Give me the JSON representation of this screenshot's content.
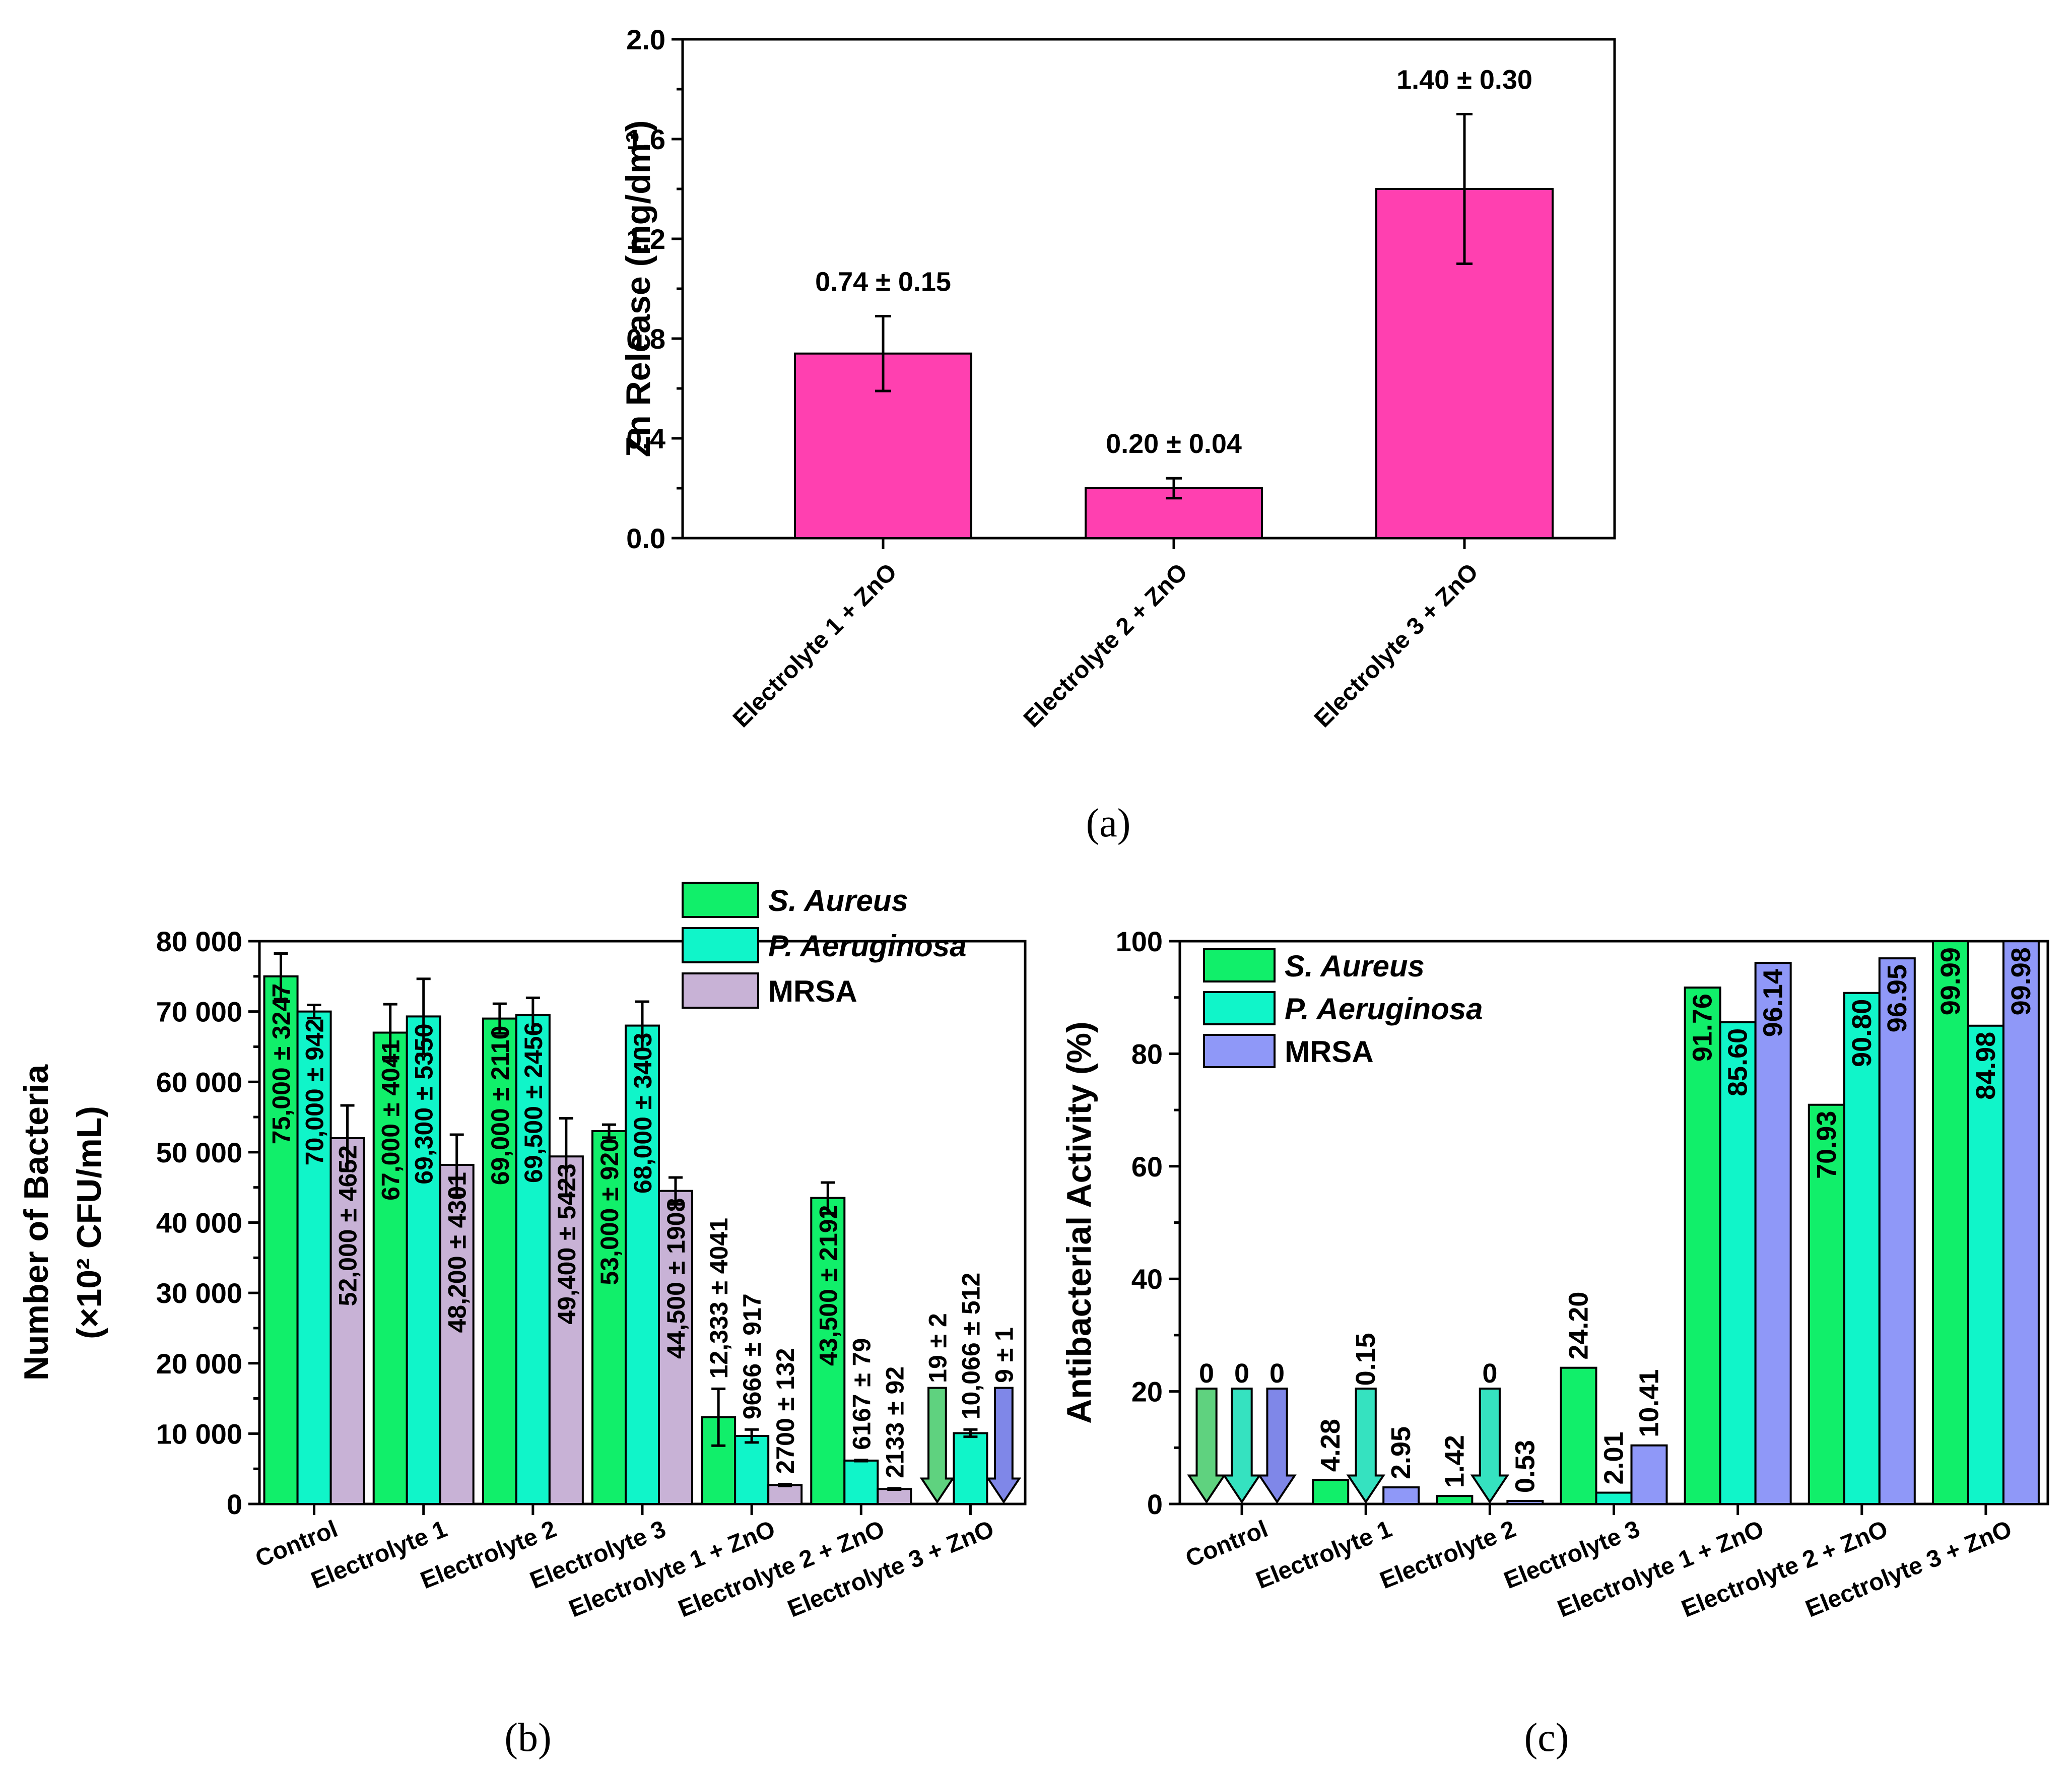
{
  "colors": {
    "pink": "#ff40b0",
    "green": "#11ef6a",
    "cyan": "#10f5c9",
    "lavender": "#c8b2d6",
    "blue": "#8f98f8",
    "arrow_green": "#5fd27f",
    "arrow_cyan": "#35e2c0",
    "arrow_blue": "#7f87e8"
  },
  "chart_data": [
    {
      "id": "a",
      "type": "bar",
      "panel_label": "(a)",
      "ylabel": "Zn Release (mg/dm³)",
      "ylim": [
        0,
        2.0
      ],
      "yticks": [
        "0.0",
        "0.4",
        "0.8",
        "1.2",
        "1.6",
        "2.0"
      ],
      "categories": [
        "Electrolyte 1 + ZnO",
        "Electrolyte 2 + ZnO",
        "Electrolyte 3 + ZnO"
      ],
      "values": [
        0.74,
        0.2,
        1.4
      ],
      "errors": [
        0.15,
        0.04,
        0.3
      ],
      "labels": [
        "0.74 ± 0.15",
        "0.20 ± 0.04",
        "1.40 ± 0.30"
      ]
    },
    {
      "id": "b",
      "type": "bar",
      "panel_label": "(b)",
      "ylabel_line1": "Number of Bacteria",
      "ylabel_line2": "(×10² CFU/mL)",
      "ylim": [
        0,
        80000
      ],
      "yticks": [
        "0",
        "10 000",
        "20 000",
        "30 000",
        "40 000",
        "50 000",
        "60 000",
        "70 000",
        "80 000"
      ],
      "categories": [
        "Control",
        "Electrolyte 1",
        "Electrolyte 2",
        "Electrolyte 3",
        "Electrolyte 1 + ZnO",
        "Electrolyte 2 + ZnO",
        "Electrolyte 3 + ZnO"
      ],
      "legend": [
        "S. Aureus",
        "P. Aeruginosa",
        "MRSA"
      ],
      "series": [
        {
          "name": "S. Aureus",
          "values": [
            75000,
            67000,
            69000,
            53000,
            12333,
            43500,
            19
          ],
          "errors": [
            3247,
            4041,
            2110,
            920,
            4041,
            2192,
            2
          ],
          "labels": [
            "75,000 ± 3247",
            "67,000 ± 4041",
            "69,000 ± 2110",
            "53,000 ± 920",
            "12,333 ± 4041",
            "43,500 ± 2192",
            "19 ± 2"
          ]
        },
        {
          "name": "P. Aeruginosa",
          "values": [
            70000,
            69300,
            69500,
            68000,
            9666,
            6167,
            10066
          ],
          "errors": [
            942,
            5350,
            2456,
            3403,
            917,
            79,
            512
          ],
          "labels": [
            "70,000 ± 942",
            "69,300 ± 5350",
            "69,500 ± 2456",
            "68,000 ± 3403",
            "9666 ± 917",
            "6167 ± 79",
            "10,066 ± 512"
          ]
        },
        {
          "name": "MRSA",
          "values": [
            52000,
            48200,
            49400,
            44500,
            2700,
            2133,
            9
          ],
          "errors": [
            4652,
            4301,
            5423,
            1908,
            132,
            92,
            1
          ],
          "labels": [
            "52,000 ± 4652",
            "48,200 ± 4301",
            "49,400 ± 5423",
            "44,500 ± 1908",
            "2700 ± 132",
            "2133 ± 92",
            "9 ± 1"
          ]
        }
      ]
    },
    {
      "id": "c",
      "type": "bar",
      "panel_label": "(c)",
      "ylabel": "Antibacterial Activity (%)",
      "ylim": [
        0,
        100
      ],
      "yticks": [
        "0",
        "20",
        "40",
        "60",
        "80",
        "100"
      ],
      "categories": [
        "Control",
        "Electrolyte 1",
        "Electrolyte 2",
        "Electrolyte 3",
        "Electrolyte 1 + ZnO",
        "Electrolyte 2 + ZnO",
        "Electrolyte 3 + ZnO"
      ],
      "legend": [
        "S. Aureus",
        "P. Aeruginosa",
        "MRSA"
      ],
      "series": [
        {
          "name": "S. Aureus",
          "values": [
            0,
            4.28,
            1.42,
            24.2,
            91.76,
            70.93,
            99.99
          ],
          "labels": [
            "0",
            "4.28",
            "1.42",
            "24.20",
            "91.76",
            "70.93",
            "99.99"
          ]
        },
        {
          "name": "P. Aeruginosa",
          "values": [
            0,
            0.15,
            0,
            2.01,
            85.6,
            90.8,
            84.98
          ],
          "labels": [
            "0",
            "0.15",
            "0",
            "2.01",
            "85.60",
            "90.80",
            "84.98"
          ]
        },
        {
          "name": "MRSA",
          "values": [
            0,
            2.95,
            0.53,
            10.41,
            96.14,
            96.95,
            99.98
          ],
          "labels": [
            "0",
            "2.95",
            "0.53",
            "10.41",
            "96.14",
            "96.95",
            "99.98"
          ]
        }
      ]
    }
  ]
}
